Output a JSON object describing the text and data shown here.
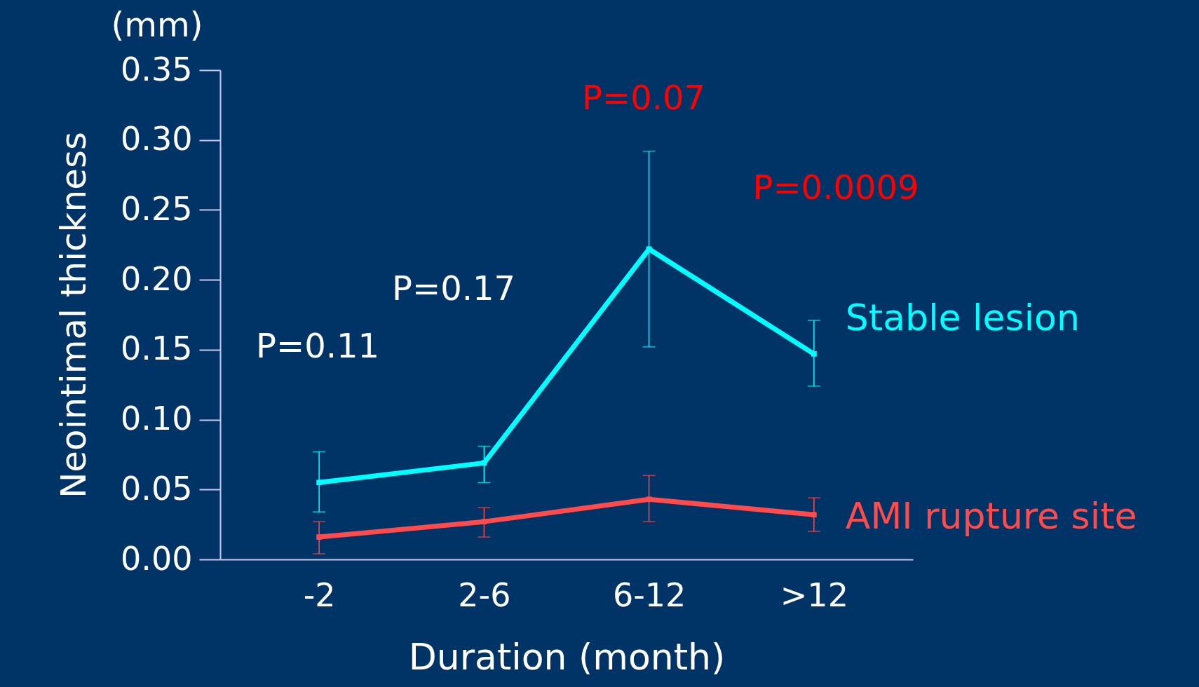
{
  "chart_data": {
    "type": "line",
    "xlabel": "Duration (month)",
    "ylabel": "Neointimal thickness",
    "categories": [
      "-2",
      "2-6",
      "6-12",
      ">12"
    ],
    "series": [
      {
        "name": "Stable lesion",
        "color": "#00ffff",
        "values": [
          0.055,
          0.069,
          0.222,
          0.147
        ],
        "errors": [
          [
            0.034,
            0.077
          ],
          [
            0.055,
            0.081
          ],
          [
            0.152,
            0.292
          ],
          [
            0.124,
            0.171
          ]
        ]
      },
      {
        "name": "AMI rupture site",
        "color": "#ff4b4b",
        "values": [
          0.016,
          0.027,
          0.043,
          0.032
        ],
        "errors": [
          [
            0.004,
            0.027
          ],
          [
            0.016,
            0.037
          ],
          [
            0.027,
            0.06
          ],
          [
            0.02,
            0.044
          ]
        ]
      }
    ],
    "ylim": [
      0,
      0.35
    ],
    "yticks": [
      {
        "value": 0,
        "label": "0.00"
      },
      0.05,
      {
        "value": 0.1,
        "label": "0.10"
      },
      0.15,
      {
        "value": 0.2,
        "label": "0.20"
      },
      0.25,
      {
        "value": 0.3,
        "label": "0.30"
      },
      0.35
    ],
    "marker": "square",
    "line_style": "solid",
    "grid": false,
    "annotations": [
      "(mm)",
      "P=0.11",
      "P=0.17",
      "P=0.07",
      "P=0.0009"
    ]
  }
}
